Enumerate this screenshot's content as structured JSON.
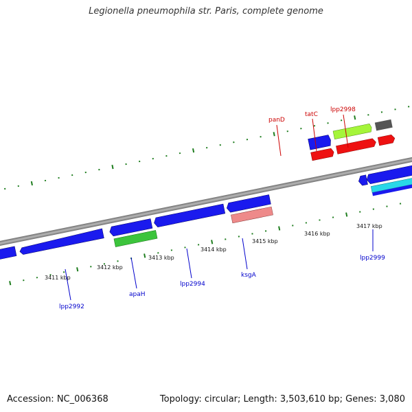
{
  "title": "Legionella pneumophila str. Paris, complete genome",
  "footer": {
    "accession": "Accession: NC_006368",
    "summary": "Topology: circular; Length: 3,503,610 bp; Genes: 3,080"
  },
  "colors": {
    "backbone": "#8c8c8c",
    "tick": "#1e7d1e",
    "forward_label": "#cc0000",
    "reverse_label": "#0000cc",
    "axis_label": "#111111"
  },
  "axis_labels": [
    "3411 kbp",
    "3412 kbp",
    "3413 kbp",
    "3414 kbp",
    "3415 kbp",
    "3416 kbp",
    "3417 kbp"
  ],
  "forward_gene_labels": [
    "panD",
    "tatC",
    "lpp2998"
  ],
  "reverse_gene_labels": [
    "lpp2992",
    "apaH",
    "lpp2994",
    "ksgA",
    "lpp2999"
  ]
}
